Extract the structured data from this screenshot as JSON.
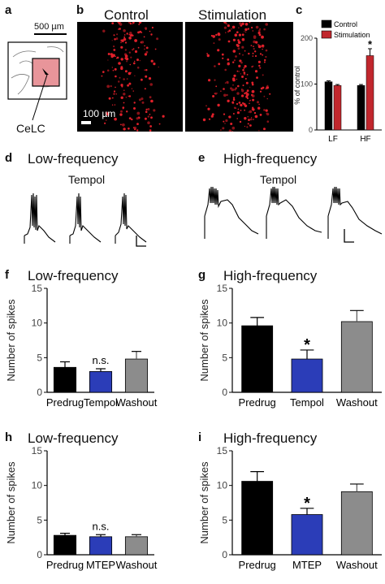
{
  "panel_a": {
    "letter": "a",
    "scale": "500 µm",
    "region": "CeLC"
  },
  "panel_b": {
    "letter": "b",
    "titles": [
      "Control",
      "Stimulation"
    ],
    "scale": "100 µm"
  },
  "panel_d": {
    "letter": "d",
    "title": "Low-frequency",
    "drug": "Tempol"
  },
  "panel_e": {
    "letter": "e",
    "title": "High-frequency",
    "drug": "Tempol"
  },
  "colors": {
    "black": "#000000",
    "blue": "#2b3db8",
    "gray": "#8c8c8c",
    "red": "#c1272d"
  },
  "chart_data": [
    {
      "id": "c",
      "letter": "c",
      "type": "bar",
      "ylabel": "% of control",
      "ylim": [
        0,
        200
      ],
      "yticks": [
        0,
        100,
        200
      ],
      "categories": [
        "LF",
        "HF"
      ],
      "series": [
        {
          "name": "Control",
          "color": "#000000",
          "values": [
            105,
            97
          ],
          "err": [
            2,
            2
          ]
        },
        {
          "name": "Stimulation",
          "color": "#c1272d",
          "values": [
            97,
            162
          ],
          "err": [
            2,
            15
          ]
        }
      ],
      "annotations": [
        {
          "category": 1,
          "series": 1,
          "text": "*"
        }
      ],
      "legend": "top-right"
    },
    {
      "id": "f",
      "letter": "f",
      "type": "bar",
      "title": "Low-frequency",
      "ylabel": "Number of spikes",
      "ylim": [
        0,
        15
      ],
      "yticks": [
        0,
        5,
        10,
        15
      ],
      "categories": [
        "Predrug",
        "Tempol",
        "Washout"
      ],
      "values": [
        3.6,
        3.0,
        4.8
      ],
      "err": [
        0.8,
        0.4,
        1.1
      ],
      "colors": [
        "#000000",
        "#2b3db8",
        "#8c8c8c"
      ],
      "annotations": [
        {
          "index": 1,
          "text": "n.s."
        }
      ]
    },
    {
      "id": "g",
      "letter": "g",
      "type": "bar",
      "title": "High-frequency",
      "ylabel": "Number of spikes",
      "ylim": [
        0,
        15
      ],
      "yticks": [
        0,
        5,
        10,
        15
      ],
      "categories": [
        "Predrug",
        "Tempol",
        "Washout"
      ],
      "values": [
        9.6,
        4.8,
        10.2
      ],
      "err": [
        1.2,
        1.3,
        1.6
      ],
      "colors": [
        "#000000",
        "#2b3db8",
        "#8c8c8c"
      ],
      "annotations": [
        {
          "index": 1,
          "text": "*"
        }
      ]
    },
    {
      "id": "h",
      "letter": "h",
      "type": "bar",
      "title": "Low-frequency",
      "ylabel": "Number of spikes",
      "ylim": [
        0,
        15
      ],
      "yticks": [
        0,
        5,
        10,
        15
      ],
      "categories": [
        "Predrug",
        "MTEP",
        "Washout"
      ],
      "values": [
        2.8,
        2.6,
        2.6
      ],
      "err": [
        0.3,
        0.3,
        0.3
      ],
      "colors": [
        "#000000",
        "#2b3db8",
        "#8c8c8c"
      ],
      "annotations": [
        {
          "index": 1,
          "text": "n.s."
        }
      ]
    },
    {
      "id": "i",
      "letter": "i",
      "type": "bar",
      "title": "High-frequency",
      "ylabel": "Number of spikes",
      "ylim": [
        0,
        15
      ],
      "yticks": [
        0,
        5,
        10,
        15
      ],
      "categories": [
        "Predrug",
        "MTEP",
        "Washout"
      ],
      "values": [
        10.6,
        5.8,
        9.1
      ],
      "err": [
        1.4,
        0.9,
        1.1
      ],
      "colors": [
        "#000000",
        "#2b3db8",
        "#8c8c8c"
      ],
      "annotations": [
        {
          "index": 1,
          "text": "*"
        }
      ]
    }
  ]
}
